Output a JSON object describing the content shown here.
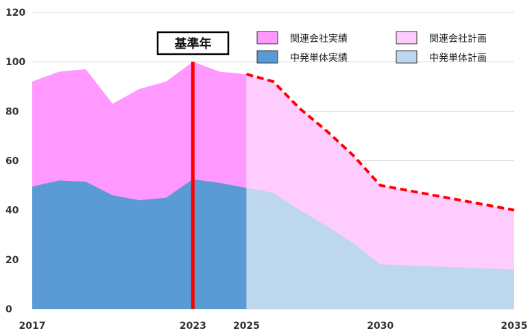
{
  "chart_data": {
    "type": "area",
    "title": "",
    "xlabel": "",
    "ylabel": "",
    "xlim": [
      2017,
      2035
    ],
    "ylim": [
      0,
      120
    ],
    "y_ticks": [
      0,
      20,
      40,
      60,
      80,
      100,
      120
    ],
    "x_ticks": [
      2017,
      2023,
      2025,
      2030,
      2035
    ],
    "grid": "horizontal",
    "legend_placement": "top-right",
    "series": [
      {
        "name": "関連会社実績",
        "color": "#ff99ff",
        "stack": "top",
        "x": [
          2017,
          2018,
          2019,
          2020,
          2021,
          2022,
          2023,
          2024,
          2025
        ],
        "values": [
          92,
          96,
          97,
          83,
          89,
          92,
          100,
          96,
          95
        ]
      },
      {
        "name": "中発単体実績",
        "color": "#5b9bd5",
        "stack": "bottom",
        "x": [
          2017,
          2018,
          2019,
          2020,
          2021,
          2022,
          2023,
          2024,
          2025
        ],
        "values": [
          49.5,
          52,
          51.5,
          46,
          44,
          45,
          52.5,
          51,
          49
        ]
      },
      {
        "name": "関連会社計画",
        "color": "#ffccff",
        "stack": "top",
        "x": [
          2025,
          2026,
          2027,
          2028,
          2029,
          2030,
          2035
        ],
        "values": [
          95,
          92,
          81,
          72,
          62,
          50,
          40
        ]
      },
      {
        "name": "中発単体計画",
        "color": "#bdd7ee",
        "stack": "bottom",
        "x": [
          2025,
          2026,
          2027,
          2028,
          2029,
          2030,
          2035
        ],
        "values": [
          49,
          47,
          40,
          33.5,
          26.5,
          18,
          16
        ]
      }
    ],
    "plan_total_line": {
      "style": "dashed",
      "color": "#ff0000",
      "x": [
        2025,
        2026,
        2027,
        2028,
        2029,
        2030,
        2035
      ],
      "values": [
        95,
        92,
        81,
        72,
        62,
        50,
        40
      ]
    },
    "reference_line": {
      "x": 2023,
      "color": "#ff0000",
      "label": "基準年"
    }
  }
}
